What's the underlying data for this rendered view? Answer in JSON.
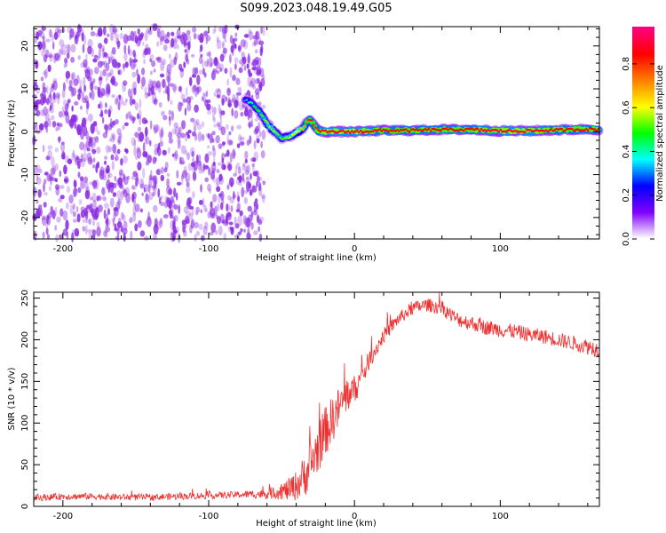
{
  "page_title": "S099.2023.048.19.49.G05",
  "chart_data": [
    {
      "type": "heatmap",
      "title": "",
      "xlabel": "Height of straight line (km)",
      "ylabel": "Frequency (Hz)",
      "xlim": [
        -220,
        168
      ],
      "ylim": [
        -25,
        24.5
      ],
      "xticks": [
        -200,
        -100,
        0,
        100
      ],
      "yticks": [
        -20,
        -10,
        0,
        10,
        20
      ],
      "colorbar": {
        "label": "Normalized spectral amplitude",
        "range": [
          0.0,
          0.97
        ],
        "ticks": [
          0.0,
          0.2,
          0.4,
          0.6,
          0.8
        ],
        "colormap": [
          "#ffffff",
          "#8000ff",
          "#0000ff",
          "#00ffff",
          "#00ff00",
          "#ffff00",
          "#ff8000",
          "#ff0000",
          "#ff0080"
        ]
      },
      "noise_region": {
        "x_range": [
          -220,
          -62
        ],
        "y_range": [
          -25,
          24.5
        ],
        "amplitude_range": [
          0.0,
          0.15
        ]
      },
      "signal_track": {
        "x": [
          -75,
          -70,
          -65,
          -60,
          -55,
          -50,
          -45,
          -40,
          -35,
          -32,
          -30,
          -27,
          -25,
          -20,
          -10,
          0,
          20,
          40,
          60,
          80,
          100,
          120,
          140,
          160,
          168
        ],
        "y": [
          7.5,
          6.5,
          4.5,
          2.0,
          0.0,
          -1.5,
          -1.2,
          -0.3,
          0.8,
          2.5,
          2.8,
          1.2,
          0.2,
          0.0,
          0.0,
          0.0,
          0.3,
          0.3,
          0.5,
          0.5,
          0.2,
          0.2,
          0.4,
          0.6,
          0.5
        ],
        "amplitude": [
          0.3,
          0.45,
          0.5,
          0.55,
          0.55,
          0.5,
          0.55,
          0.6,
          0.7,
          0.8,
          0.85,
          0.8,
          0.85,
          0.9,
          0.9,
          0.9,
          0.85,
          0.85,
          0.85,
          0.85,
          0.9,
          0.9,
          0.85,
          0.85,
          0.85
        ]
      }
    },
    {
      "type": "line",
      "title": "",
      "xlabel": "Height of straight line (km)",
      "ylabel": "SNR (10 * v/v)",
      "xlim": [
        -220,
        168
      ],
      "ylim": [
        0,
        257
      ],
      "xticks": [
        -200,
        -100,
        0,
        100
      ],
      "yticks": [
        0,
        50,
        100,
        150,
        200,
        250
      ],
      "color": "#f03030",
      "series": [
        {
          "x": [
            -220,
            -200,
            -180,
            -160,
            -140,
            -120,
            -100,
            -80,
            -60,
            -50,
            -45,
            -40,
            -35,
            -30,
            -25,
            -20,
            -15,
            -10,
            -5,
            0,
            5,
            10,
            15,
            20,
            30,
            40,
            50,
            60,
            70,
            80,
            90,
            100,
            110,
            120,
            130,
            140,
            150,
            160,
            168
          ],
          "values": [
            10,
            12,
            12,
            11,
            11,
            12,
            13,
            14,
            15,
            18,
            20,
            25,
            35,
            50,
            70,
            90,
            105,
            120,
            135,
            140,
            155,
            175,
            190,
            205,
            225,
            238,
            242,
            238,
            225,
            220,
            215,
            212,
            210,
            206,
            204,
            200,
            196,
            192,
            188
          ],
          "noise": [
            4,
            4,
            4,
            4,
            4,
            4,
            4,
            4,
            6,
            10,
            14,
            18,
            25,
            30,
            30,
            30,
            28,
            25,
            22,
            18,
            14,
            12,
            10,
            9,
            8,
            8,
            8,
            9,
            9,
            9,
            9,
            9,
            9,
            9,
            9,
            9,
            9,
            10,
            10
          ]
        }
      ]
    }
  ]
}
